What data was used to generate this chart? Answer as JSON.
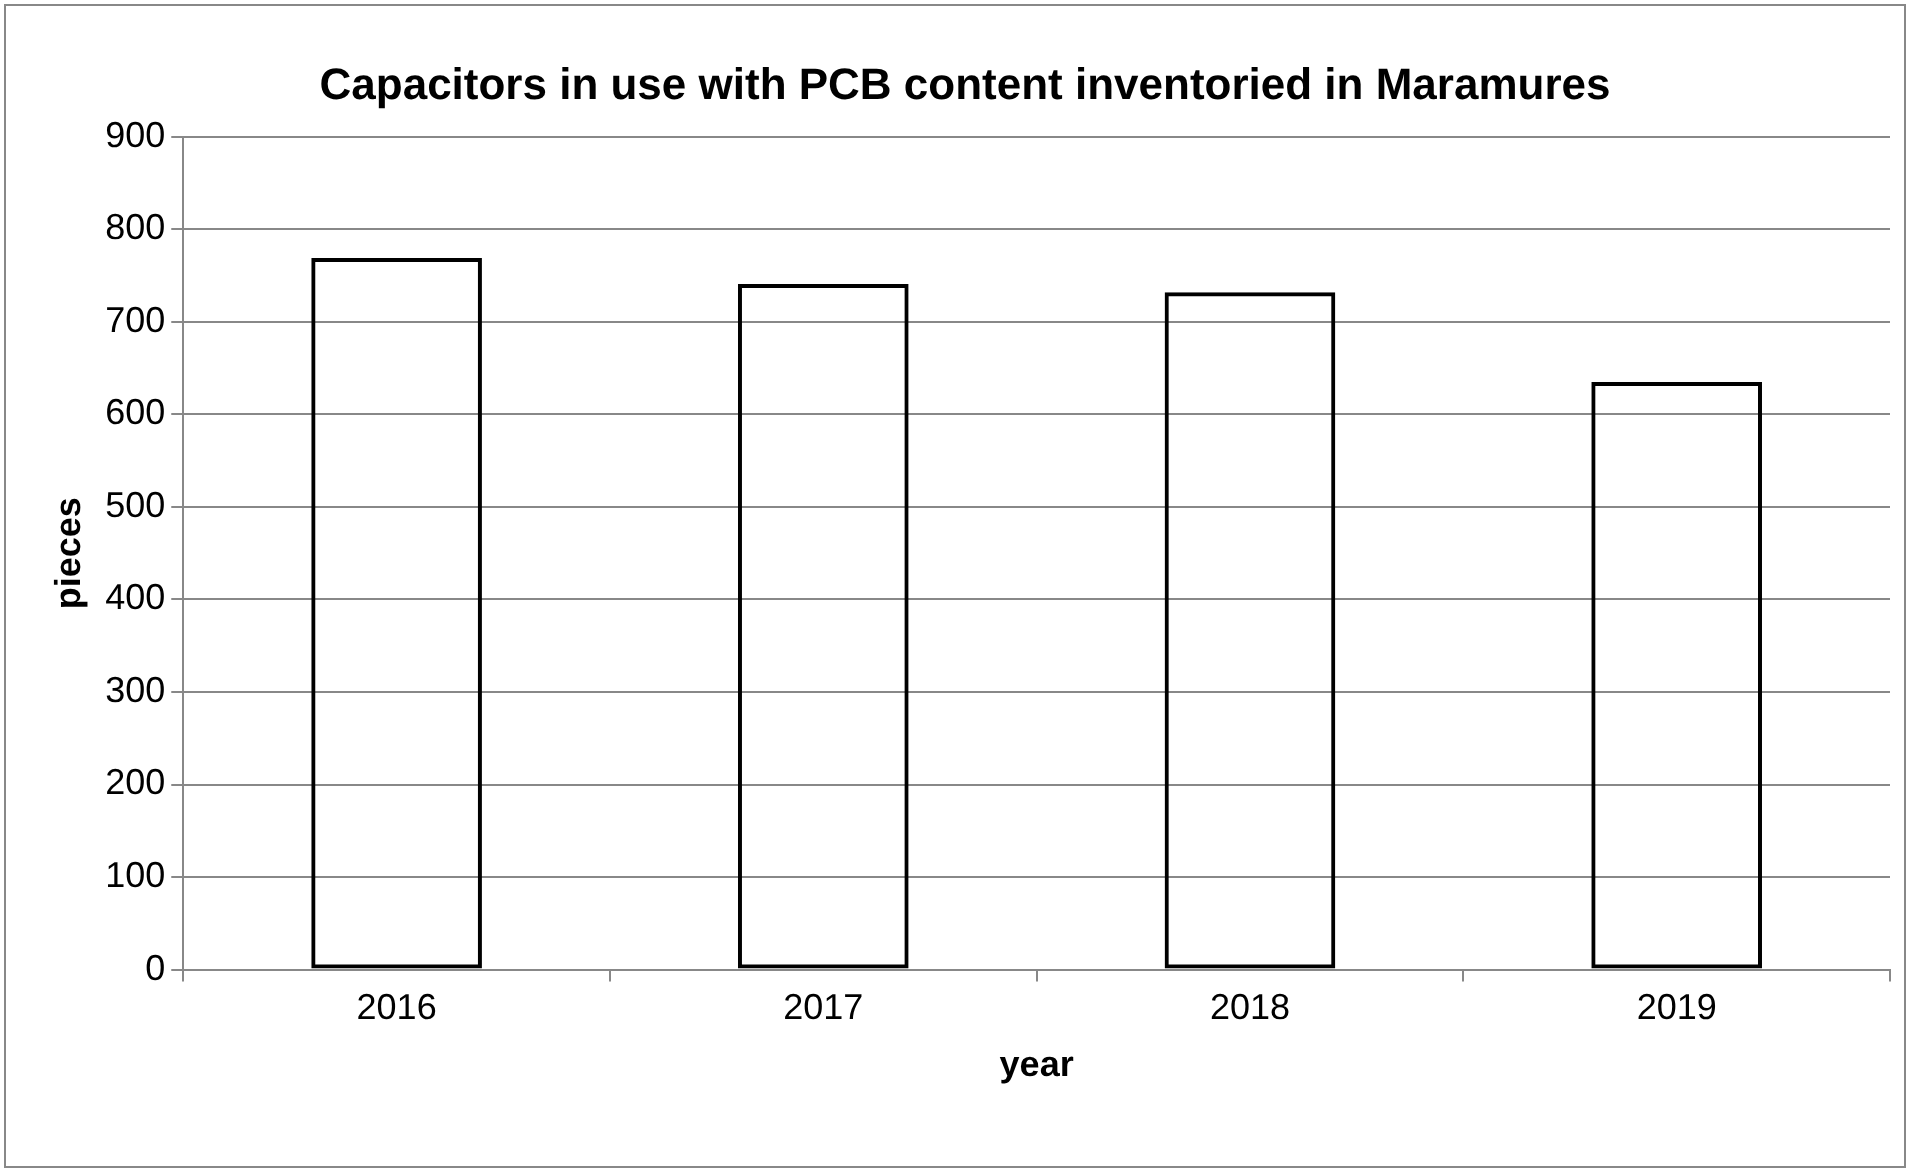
{
  "chart_data": {
    "type": "bar",
    "title": "Capacitors in use with PCB content inventoried in Maramures",
    "xlabel": "year",
    "ylabel": "pieces",
    "categories": [
      "2016",
      "2017",
      "2018",
      "2019"
    ],
    "values": [
      769,
      741,
      732,
      635
    ],
    "color": "#000000",
    "ylim": [
      0,
      900
    ],
    "yticks": [
      0,
      100,
      200,
      300,
      400,
      500,
      600,
      700,
      800,
      900
    ],
    "grid": "y"
  }
}
